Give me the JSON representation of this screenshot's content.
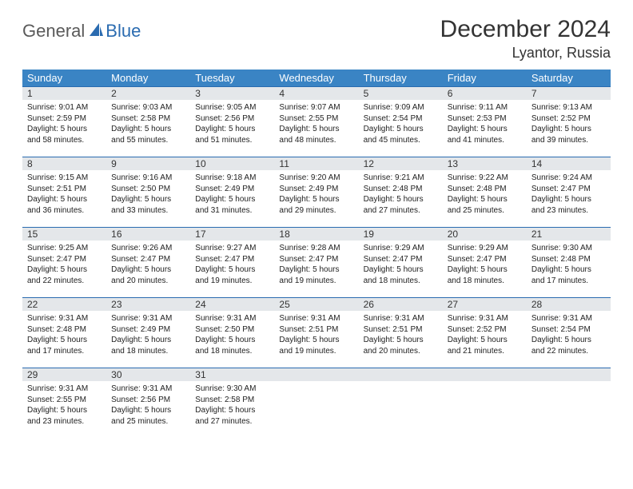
{
  "logo": {
    "text1": "General",
    "text2": "Blue"
  },
  "title": "December 2024",
  "location": "Lyantor, Russia",
  "colors": {
    "header_bg": "#3a84c4",
    "header_text": "#ffffff",
    "daynum_bg": "#e4e7ea",
    "daynum_border": "#2a6bb0",
    "logo_gray": "#5a5a5a",
    "logo_blue": "#2a6bb0"
  },
  "weekdays": [
    "Sunday",
    "Monday",
    "Tuesday",
    "Wednesday",
    "Thursday",
    "Friday",
    "Saturday"
  ],
  "days": [
    {
      "n": "1",
      "sr": "Sunrise: 9:01 AM",
      "ss": "Sunset: 2:59 PM",
      "d1": "Daylight: 5 hours",
      "d2": "and 58 minutes."
    },
    {
      "n": "2",
      "sr": "Sunrise: 9:03 AM",
      "ss": "Sunset: 2:58 PM",
      "d1": "Daylight: 5 hours",
      "d2": "and 55 minutes."
    },
    {
      "n": "3",
      "sr": "Sunrise: 9:05 AM",
      "ss": "Sunset: 2:56 PM",
      "d1": "Daylight: 5 hours",
      "d2": "and 51 minutes."
    },
    {
      "n": "4",
      "sr": "Sunrise: 9:07 AM",
      "ss": "Sunset: 2:55 PM",
      "d1": "Daylight: 5 hours",
      "d2": "and 48 minutes."
    },
    {
      "n": "5",
      "sr": "Sunrise: 9:09 AM",
      "ss": "Sunset: 2:54 PM",
      "d1": "Daylight: 5 hours",
      "d2": "and 45 minutes."
    },
    {
      "n": "6",
      "sr": "Sunrise: 9:11 AM",
      "ss": "Sunset: 2:53 PM",
      "d1": "Daylight: 5 hours",
      "d2": "and 41 minutes."
    },
    {
      "n": "7",
      "sr": "Sunrise: 9:13 AM",
      "ss": "Sunset: 2:52 PM",
      "d1": "Daylight: 5 hours",
      "d2": "and 39 minutes."
    },
    {
      "n": "8",
      "sr": "Sunrise: 9:15 AM",
      "ss": "Sunset: 2:51 PM",
      "d1": "Daylight: 5 hours",
      "d2": "and 36 minutes."
    },
    {
      "n": "9",
      "sr": "Sunrise: 9:16 AM",
      "ss": "Sunset: 2:50 PM",
      "d1": "Daylight: 5 hours",
      "d2": "and 33 minutes."
    },
    {
      "n": "10",
      "sr": "Sunrise: 9:18 AM",
      "ss": "Sunset: 2:49 PM",
      "d1": "Daylight: 5 hours",
      "d2": "and 31 minutes."
    },
    {
      "n": "11",
      "sr": "Sunrise: 9:20 AM",
      "ss": "Sunset: 2:49 PM",
      "d1": "Daylight: 5 hours",
      "d2": "and 29 minutes."
    },
    {
      "n": "12",
      "sr": "Sunrise: 9:21 AM",
      "ss": "Sunset: 2:48 PM",
      "d1": "Daylight: 5 hours",
      "d2": "and 27 minutes."
    },
    {
      "n": "13",
      "sr": "Sunrise: 9:22 AM",
      "ss": "Sunset: 2:48 PM",
      "d1": "Daylight: 5 hours",
      "d2": "and 25 minutes."
    },
    {
      "n": "14",
      "sr": "Sunrise: 9:24 AM",
      "ss": "Sunset: 2:47 PM",
      "d1": "Daylight: 5 hours",
      "d2": "and 23 minutes."
    },
    {
      "n": "15",
      "sr": "Sunrise: 9:25 AM",
      "ss": "Sunset: 2:47 PM",
      "d1": "Daylight: 5 hours",
      "d2": "and 22 minutes."
    },
    {
      "n": "16",
      "sr": "Sunrise: 9:26 AM",
      "ss": "Sunset: 2:47 PM",
      "d1": "Daylight: 5 hours",
      "d2": "and 20 minutes."
    },
    {
      "n": "17",
      "sr": "Sunrise: 9:27 AM",
      "ss": "Sunset: 2:47 PM",
      "d1": "Daylight: 5 hours",
      "d2": "and 19 minutes."
    },
    {
      "n": "18",
      "sr": "Sunrise: 9:28 AM",
      "ss": "Sunset: 2:47 PM",
      "d1": "Daylight: 5 hours",
      "d2": "and 19 minutes."
    },
    {
      "n": "19",
      "sr": "Sunrise: 9:29 AM",
      "ss": "Sunset: 2:47 PM",
      "d1": "Daylight: 5 hours",
      "d2": "and 18 minutes."
    },
    {
      "n": "20",
      "sr": "Sunrise: 9:29 AM",
      "ss": "Sunset: 2:47 PM",
      "d1": "Daylight: 5 hours",
      "d2": "and 18 minutes."
    },
    {
      "n": "21",
      "sr": "Sunrise: 9:30 AM",
      "ss": "Sunset: 2:48 PM",
      "d1": "Daylight: 5 hours",
      "d2": "and 17 minutes."
    },
    {
      "n": "22",
      "sr": "Sunrise: 9:31 AM",
      "ss": "Sunset: 2:48 PM",
      "d1": "Daylight: 5 hours",
      "d2": "and 17 minutes."
    },
    {
      "n": "23",
      "sr": "Sunrise: 9:31 AM",
      "ss": "Sunset: 2:49 PM",
      "d1": "Daylight: 5 hours",
      "d2": "and 18 minutes."
    },
    {
      "n": "24",
      "sr": "Sunrise: 9:31 AM",
      "ss": "Sunset: 2:50 PM",
      "d1": "Daylight: 5 hours",
      "d2": "and 18 minutes."
    },
    {
      "n": "25",
      "sr": "Sunrise: 9:31 AM",
      "ss": "Sunset: 2:51 PM",
      "d1": "Daylight: 5 hours",
      "d2": "and 19 minutes."
    },
    {
      "n": "26",
      "sr": "Sunrise: 9:31 AM",
      "ss": "Sunset: 2:51 PM",
      "d1": "Daylight: 5 hours",
      "d2": "and 20 minutes."
    },
    {
      "n": "27",
      "sr": "Sunrise: 9:31 AM",
      "ss": "Sunset: 2:52 PM",
      "d1": "Daylight: 5 hours",
      "d2": "and 21 minutes."
    },
    {
      "n": "28",
      "sr": "Sunrise: 9:31 AM",
      "ss": "Sunset: 2:54 PM",
      "d1": "Daylight: 5 hours",
      "d2": "and 22 minutes."
    },
    {
      "n": "29",
      "sr": "Sunrise: 9:31 AM",
      "ss": "Sunset: 2:55 PM",
      "d1": "Daylight: 5 hours",
      "d2": "and 23 minutes."
    },
    {
      "n": "30",
      "sr": "Sunrise: 9:31 AM",
      "ss": "Sunset: 2:56 PM",
      "d1": "Daylight: 5 hours",
      "d2": "and 25 minutes."
    },
    {
      "n": "31",
      "sr": "Sunrise: 9:30 AM",
      "ss": "Sunset: 2:58 PM",
      "d1": "Daylight: 5 hours",
      "d2": "and 27 minutes."
    }
  ]
}
